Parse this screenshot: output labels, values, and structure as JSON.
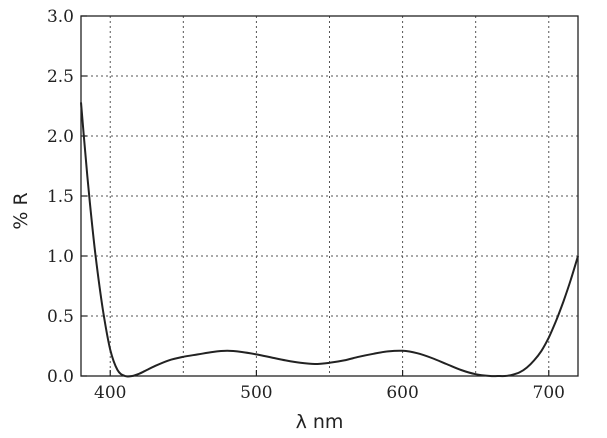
{
  "chart_data": {
    "type": "line",
    "title": "",
    "xlabel": "λ nm",
    "ylabel": "% R",
    "xlim": [
      380,
      720
    ],
    "ylim": [
      0,
      3.0
    ],
    "x_ticks": [
      400,
      500,
      600,
      700
    ],
    "x_tick_labels": [
      "400",
      "500",
      "600",
      "700"
    ],
    "y_ticks": [
      0,
      0.5,
      1.0,
      1.5,
      2.0,
      2.5,
      3.0
    ],
    "y_tick_labels": [
      "0.0",
      "0.5",
      "1.0",
      "1.5",
      "2.0",
      "2.5",
      "3.0"
    ],
    "x_gridlines": [
      400,
      450,
      500,
      550,
      600,
      650,
      700
    ],
    "y_gridlines": [
      0.5,
      1.0,
      1.5,
      2.0,
      2.5
    ],
    "grid": true,
    "grid_style": "dotted",
    "series": [
      {
        "color": "#222222",
        "x": [
          380,
          383,
          386,
          390,
          395,
          400,
          405,
          410,
          415,
          420,
          425,
          430,
          440,
          450,
          460,
          470,
          480,
          490,
          500,
          510,
          520,
          530,
          540,
          550,
          560,
          570,
          580,
          590,
          600,
          610,
          620,
          630,
          640,
          650,
          660,
          665,
          670,
          675,
          680,
          685,
          690,
          695,
          700,
          705,
          710,
          715,
          720
        ],
        "y": [
          2.28,
          1.85,
          1.45,
          1.0,
          0.55,
          0.22,
          0.05,
          0.0,
          0.0,
          0.02,
          0.05,
          0.08,
          0.13,
          0.16,
          0.18,
          0.2,
          0.21,
          0.2,
          0.18,
          0.155,
          0.13,
          0.11,
          0.1,
          0.11,
          0.13,
          0.16,
          0.185,
          0.205,
          0.21,
          0.19,
          0.15,
          0.1,
          0.05,
          0.015,
          0.0,
          0.0,
          0.0,
          0.01,
          0.03,
          0.07,
          0.13,
          0.21,
          0.32,
          0.46,
          0.62,
          0.8,
          1.0
        ]
      }
    ]
  }
}
